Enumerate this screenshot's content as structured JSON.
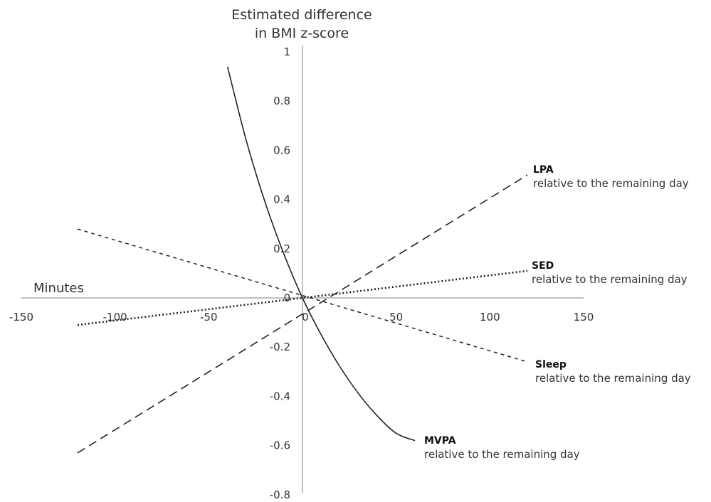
{
  "chart_data": {
    "type": "line",
    "title_lines": [
      "Estimated difference",
      "in BMI z-score"
    ],
    "xlabel": "Minutes",
    "xlim": [
      -150,
      150
    ],
    "ylim": [
      -0.8,
      1
    ],
    "xticks": [
      -150,
      -100,
      -50,
      0,
      50,
      100,
      150
    ],
    "yticks": [
      1,
      0.8,
      0.6,
      0.4,
      0.2,
      0,
      -0.2,
      -0.4,
      -0.6,
      -0.8
    ],
    "series": [
      {
        "name": "MVPA",
        "description": "relative to the remaining day",
        "style": "solid",
        "x": [
          -40,
          -30,
          -20,
          -10,
          0,
          10,
          20,
          30,
          40,
          50,
          60
        ],
        "y": [
          0.94,
          0.64,
          0.39,
          0.18,
          0.0,
          -0.15,
          -0.28,
          -0.39,
          -0.48,
          -0.55,
          -0.58
        ]
      },
      {
        "name": "LPA",
        "description": "relative to the remaining day",
        "style": "dashed",
        "x": [
          -120,
          120
        ],
        "y": [
          -0.63,
          0.5
        ]
      },
      {
        "name": "SED",
        "description": "relative to the remaining day",
        "style": "dotted",
        "x": [
          -120,
          120
        ],
        "y": [
          -0.11,
          0.11
        ]
      },
      {
        "name": "Sleep",
        "description": "relative to the remaining day",
        "style": "short-dashed",
        "x": [
          -120,
          120
        ],
        "y": [
          0.28,
          -0.26
        ]
      }
    ],
    "grid": false,
    "legend": "inline labels at line ends"
  }
}
